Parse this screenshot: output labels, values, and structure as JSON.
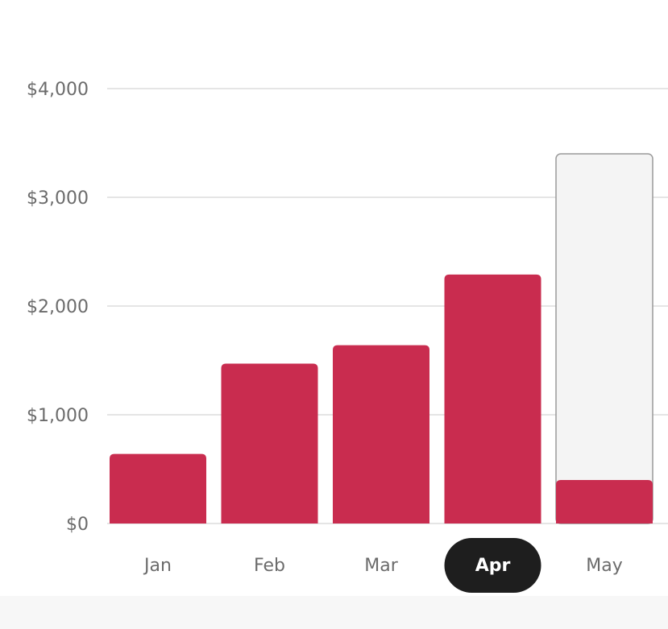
{
  "chart_data": {
    "type": "bar",
    "categories": [
      "Jan",
      "Feb",
      "Mar",
      "Apr",
      "May"
    ],
    "series": [
      {
        "color": "#c92c4f",
        "values": [
          640,
          1470,
          1640,
          2290,
          400
        ]
      },
      {
        "color": "#f4f4f4",
        "values": [
          null,
          null,
          null,
          null,
          3400
        ]
      }
    ],
    "ylim": [
      0,
      4000
    ],
    "yticks": [
      {
        "value": 0,
        "label": "$0"
      },
      {
        "value": 1000,
        "label": "$1,000"
      },
      {
        "value": 2000,
        "label": "$2,000"
      },
      {
        "value": 3000,
        "label": "$3,000"
      },
      {
        "value": 4000,
        "label": "$4,000"
      }
    ],
    "grid": true,
    "selected_index": 3
  }
}
